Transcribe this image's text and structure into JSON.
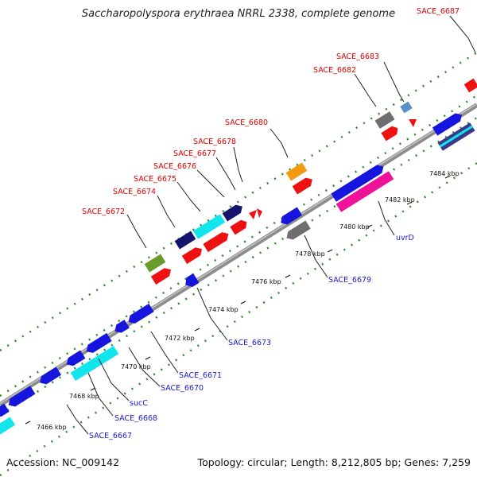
{
  "title": "Saccharopolyspora erythraea NRRL 2338, complete genome",
  "accession": "Accession: NC_009142",
  "summary": "Topology: circular; Length: 8,212,805 bp; Genes: 7,259",
  "colors": {
    "backbone": "#9a9a9a",
    "dots": "#2e8b2e",
    "red_label": "#e00000",
    "blue_label": "#1a1acc",
    "cds_red": "#ee1111",
    "cds_blue": "#1515dd",
    "cds_navy": "#14146e",
    "cds_cyan": "#11e6ee",
    "cds_magenta": "#ee1199",
    "cds_gray": "#6e6e6e",
    "cds_orange": "#f29a10",
    "cds_olive": "#6b9c2a",
    "cds_steel": "#5b8fc9"
  },
  "ticks": [
    "7466 kbp",
    "7468 kbp",
    "7470 kbp",
    "7472 kbp",
    "7474 kbp",
    "7476 kbp",
    "7478 kbp",
    "7480 kbp",
    "7482 kbp",
    "7484 kbp"
  ],
  "labels_top": [
    "SACE_6687",
    "SACE_6683",
    "SACE_6682",
    "SACE_6680",
    "SACE_6678",
    "SACE_6677",
    "SACE_6676",
    "SACE_6675",
    "SACE_6674",
    "SACE_6672"
  ],
  "labels_bottom": [
    "uvrD",
    "SACE_6679",
    "SACE_6673",
    "SACE_6671",
    "SACE_6670",
    "sucC",
    "SACE_6668",
    "SACE_6667"
  ]
}
